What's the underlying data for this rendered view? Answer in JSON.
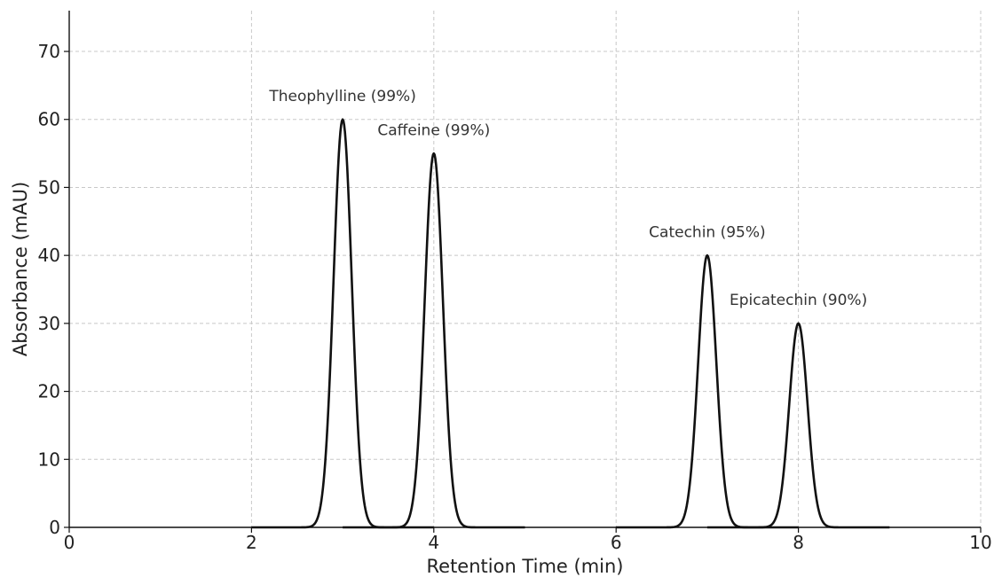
{
  "chart_data": {
    "type": "line",
    "title": "",
    "xlabel": "Retention Time (min)",
    "ylabel": "Absorbance (mAU)",
    "xlim": [
      0,
      10
    ],
    "ylim": [
      0,
      76
    ],
    "xticks": [
      0,
      2,
      4,
      6,
      8,
      10
    ],
    "yticks": [
      0,
      10,
      20,
      30,
      40,
      50,
      60,
      70
    ],
    "grid": true,
    "line_color": "#111111",
    "peaks": [
      {
        "label": "Theophylline (99%)",
        "retention_time": 3.0,
        "absorbance": 60,
        "sigma": 0.1,
        "trace_range": [
          2.0,
          4.0
        ]
      },
      {
        "label": "Caffeine (99%)",
        "retention_time": 4.0,
        "absorbance": 55,
        "sigma": 0.1,
        "trace_range": [
          3.0,
          5.0
        ]
      },
      {
        "label": "Catechin (95%)",
        "retention_time": 7.0,
        "absorbance": 40,
        "sigma": 0.1,
        "trace_range": [
          6.0,
          8.0
        ]
      },
      {
        "label": "Epicatechin (90%)",
        "retention_time": 8.0,
        "absorbance": 30,
        "sigma": 0.1,
        "trace_range": [
          7.0,
          9.0
        ]
      }
    ]
  }
}
